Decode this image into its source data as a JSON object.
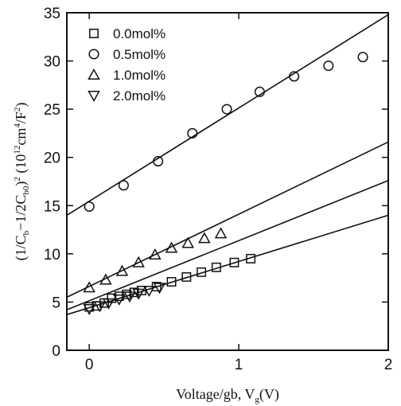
{
  "chart_data": {
    "type": "scatter",
    "xlabel_main": "Voltage/gb, V",
    "xlabel_sub": "g",
    "xlabel_tail": "(V)",
    "ylabel_parts": [
      "(1/C",
      "b",
      "−1/2C",
      "b0",
      ")",
      "2",
      " (10",
      "12",
      "cm",
      "4",
      "/F",
      "2",
      ")"
    ],
    "xlim": [
      -0.15,
      2.0
    ],
    "ylim": [
      0,
      35
    ],
    "xticks": [
      0,
      1,
      2
    ],
    "yticks": [
      0,
      5,
      10,
      15,
      20,
      25,
      30,
      35
    ],
    "series": [
      {
        "name": "0.0mol%",
        "marker": "square",
        "points": [
          [
            0.0,
            4.5
          ],
          [
            0.05,
            4.6
          ],
          [
            0.1,
            4.9
          ],
          [
            0.15,
            5.4
          ],
          [
            0.2,
            5.6
          ],
          [
            0.25,
            5.8
          ],
          [
            0.3,
            6.0
          ],
          [
            0.35,
            6.2
          ],
          [
            0.45,
            6.6
          ],
          [
            0.55,
            7.1
          ],
          [
            0.65,
            7.6
          ],
          [
            0.75,
            8.1
          ],
          [
            0.85,
            8.6
          ],
          [
            0.97,
            9.1
          ],
          [
            1.08,
            9.5
          ]
        ],
        "fit": [
          [
            -0.15,
            3.7
          ],
          [
            2.0,
            14.0
          ]
        ]
      },
      {
        "name": "0.5mol%",
        "marker": "circle",
        "points": [
          [
            0.0,
            14.9
          ],
          [
            0.23,
            17.1
          ],
          [
            0.46,
            19.6
          ],
          [
            0.69,
            22.5
          ],
          [
            0.92,
            25.0
          ],
          [
            1.14,
            26.8
          ],
          [
            1.37,
            28.4
          ],
          [
            1.6,
            29.5
          ],
          [
            1.83,
            30.4
          ]
        ],
        "fit": [
          [
            -0.15,
            14.0
          ],
          [
            2.0,
            34.8
          ]
        ]
      },
      {
        "name": "1.0mol%",
        "marker": "triangle-up",
        "points": [
          [
            0.0,
            6.5
          ],
          [
            0.11,
            7.3
          ],
          [
            0.22,
            8.2
          ],
          [
            0.33,
            9.1
          ],
          [
            0.44,
            9.9
          ],
          [
            0.55,
            10.6
          ],
          [
            0.66,
            11.1
          ],
          [
            0.77,
            11.6
          ],
          [
            0.88,
            12.1
          ]
        ],
        "fit": [
          [
            -0.15,
            5.5
          ],
          [
            2.0,
            21.6
          ]
        ]
      },
      {
        "name": "2.0mol%",
        "marker": "triangle-down",
        "points": [
          [
            0.0,
            4.3
          ],
          [
            0.07,
            4.6
          ],
          [
            0.13,
            4.9
          ],
          [
            0.2,
            5.3
          ],
          [
            0.27,
            5.6
          ],
          [
            0.33,
            5.9
          ],
          [
            0.4,
            6.2
          ],
          [
            0.47,
            6.5
          ]
        ],
        "fit": [
          [
            -0.15,
            4.2
          ],
          [
            2.0,
            17.6
          ]
        ]
      }
    ]
  }
}
